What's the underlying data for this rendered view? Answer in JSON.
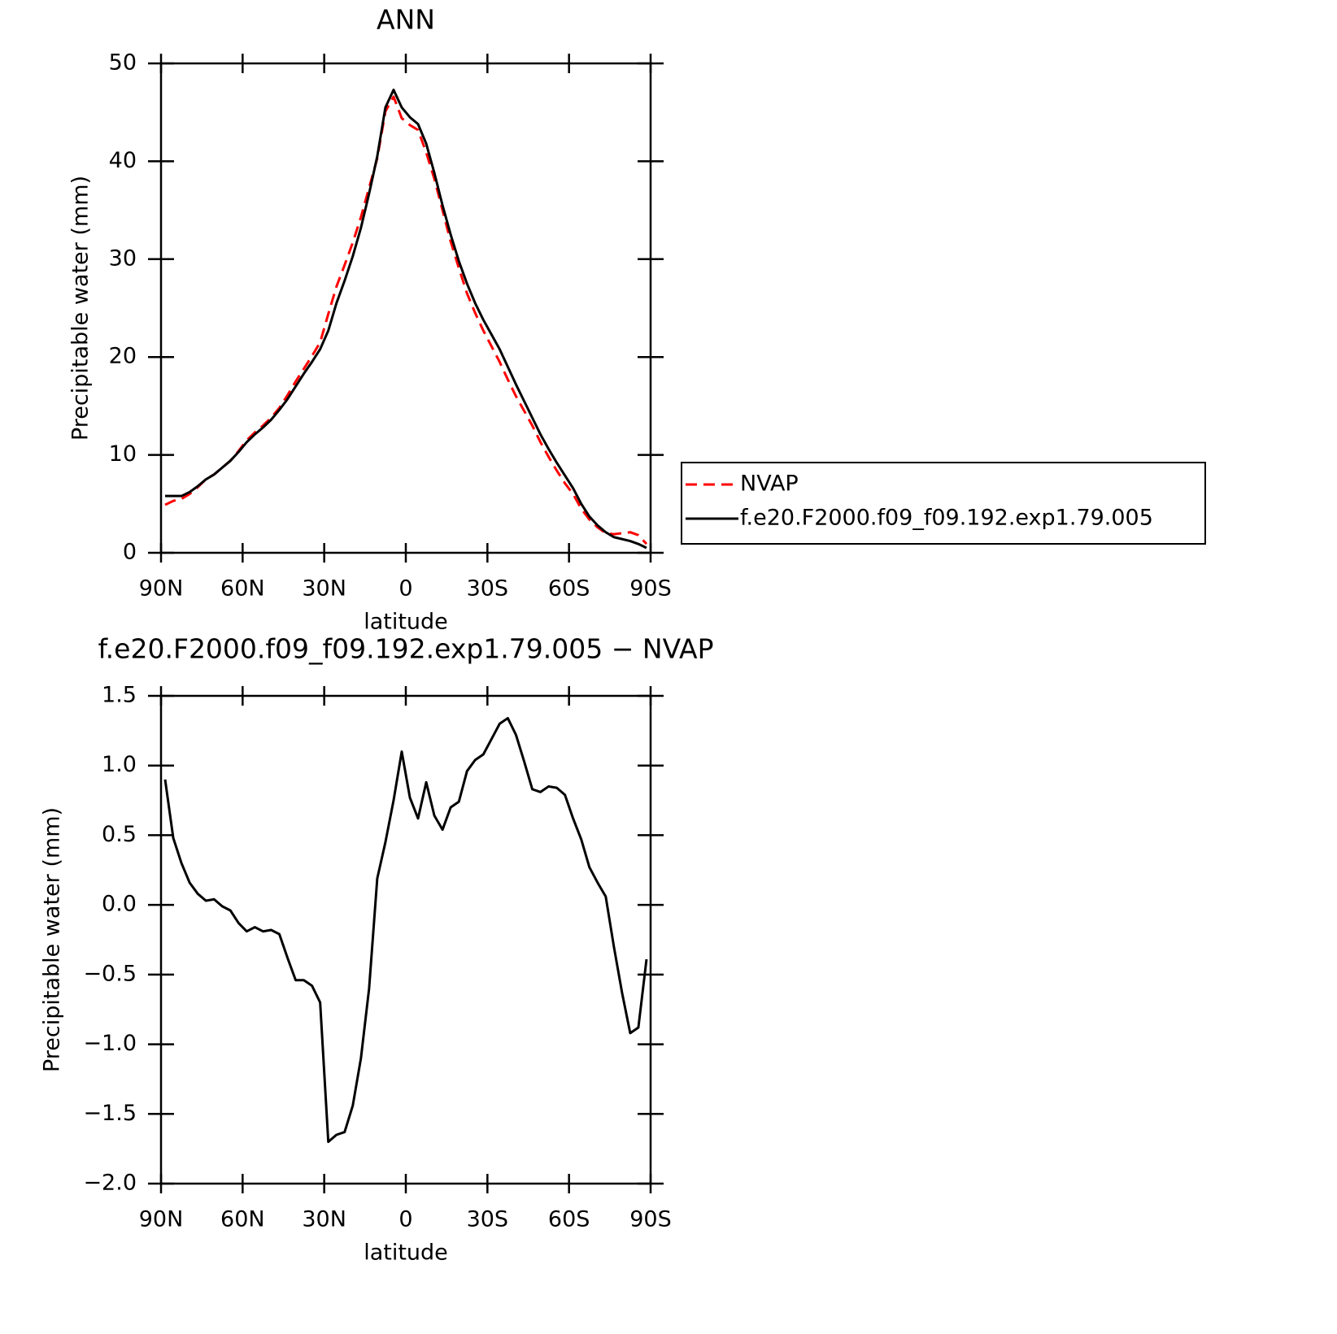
{
  "chart_data": [
    {
      "type": "line",
      "title": "ANN",
      "x_label": "latitude",
      "y_label": "Precipitable water (mm)",
      "x": [
        88.5,
        85.5,
        82.5,
        79.5,
        76.5,
        73.5,
        70.5,
        67.5,
        64.5,
        61.5,
        58.5,
        55.5,
        52.5,
        49.5,
        46.5,
        43.5,
        40.5,
        37.5,
        34.5,
        31.5,
        28.5,
        25.5,
        22.5,
        19.5,
        16.5,
        13.5,
        10.5,
        7.5,
        4.5,
        1.5,
        -1.5,
        -4.5,
        -7.5,
        -10.5,
        -13.5,
        -16.5,
        -19.5,
        -22.5,
        -25.5,
        -28.5,
        -31.5,
        -34.5,
        -37.5,
        -40.5,
        -43.5,
        -46.5,
        -49.5,
        -52.5,
        -55.5,
        -58.5,
        -61.5,
        -64.5,
        -67.5,
        -70.5,
        -73.5,
        -76.5,
        -79.5,
        -82.5,
        -85.5,
        -88.5
      ],
      "xlim": [
        90,
        -90
      ],
      "xticks": [
        {
          "value": 90,
          "label": "90N"
        },
        {
          "value": 60,
          "label": "60N"
        },
        {
          "value": 30,
          "label": "30N"
        },
        0,
        {
          "value": -30,
          "label": "30S"
        },
        {
          "value": -60,
          "label": "60S"
        },
        {
          "value": -90,
          "label": "90S"
        }
      ],
      "ylim": [
        0,
        50
      ],
      "yticks": [
        0,
        10,
        20,
        30,
        40,
        50
      ],
      "legend": "right",
      "series": [
        {
          "name": "NVAP",
          "color": "#ff0000",
          "style": "dashed",
          "values": [
            4.9,
            5.3,
            5.5,
            6.0,
            6.7,
            7.5,
            8.0,
            8.7,
            9.4,
            10.4,
            11.5,
            12.3,
            13.0,
            13.8,
            14.8,
            16.1,
            17.5,
            18.8,
            20.1,
            21.5,
            24.4,
            27.2,
            29.4,
            31.7,
            34.3,
            37.3,
            40.3,
            45.1,
            46.6,
            44.4,
            43.7,
            43.2,
            40.9,
            38.2,
            35.0,
            31.8,
            29.1,
            26.5,
            24.5,
            22.7,
            21.1,
            19.5,
            17.7,
            16.0,
            14.5,
            13.0,
            11.3,
            9.8,
            8.4,
            7.1,
            6.0,
            4.5,
            3.4,
            2.6,
            2.0,
            1.9,
            2.0,
            2.1,
            1.8,
            0.9
          ]
        },
        {
          "name": "f.e20.F2000.f09_f09.192.exp1.79.005",
          "color": "#000000",
          "style": "solid",
          "values": [
            5.8,
            5.8,
            5.8,
            6.2,
            6.8,
            7.5,
            8.0,
            8.7,
            9.4,
            10.3,
            11.3,
            12.1,
            12.8,
            13.6,
            14.6,
            15.7,
            17.0,
            18.3,
            19.5,
            20.8,
            22.7,
            25.5,
            27.8,
            30.3,
            33.2,
            36.7,
            40.5,
            45.5,
            47.3,
            45.5,
            44.5,
            43.8,
            41.8,
            38.8,
            35.5,
            32.5,
            29.8,
            27.5,
            25.5,
            23.8,
            22.3,
            20.8,
            19.0,
            17.2,
            15.5,
            13.8,
            12.1,
            10.6,
            9.2,
            7.9,
            6.6,
            5.0,
            3.7,
            2.8,
            2.1,
            1.6,
            1.4,
            1.2,
            0.9,
            0.5
          ]
        }
      ]
    },
    {
      "type": "line",
      "title": "f.e20.F2000.f09_f09.192.exp1.79.005 − NVAP",
      "x_label": "latitude",
      "y_label": "Precipitable water (mm)",
      "x": [
        88.5,
        85.5,
        82.5,
        79.5,
        76.5,
        73.5,
        70.5,
        67.5,
        64.5,
        61.5,
        58.5,
        55.5,
        52.5,
        49.5,
        46.5,
        43.5,
        40.5,
        37.5,
        34.5,
        31.5,
        28.5,
        25.5,
        22.5,
        19.5,
        16.5,
        13.5,
        10.5,
        7.5,
        4.5,
        1.5,
        -1.5,
        -4.5,
        -7.5,
        -10.5,
        -13.5,
        -16.5,
        -19.5,
        -22.5,
        -25.5,
        -28.5,
        -31.5,
        -34.5,
        -37.5,
        -40.5,
        -43.5,
        -46.5,
        -49.5,
        -52.5,
        -55.5,
        -58.5,
        -61.5,
        -64.5,
        -67.5,
        -70.5,
        -73.5,
        -76.5,
        -79.5,
        -82.5,
        -85.5,
        -88.5
      ],
      "xlim": [
        90,
        -90
      ],
      "xticks": [
        {
          "value": 90,
          "label": "90N"
        },
        {
          "value": 60,
          "label": "60N"
        },
        {
          "value": 30,
          "label": "30N"
        },
        0,
        {
          "value": -30,
          "label": "30S"
        },
        {
          "value": -60,
          "label": "60S"
        },
        {
          "value": -90,
          "label": "90S"
        }
      ],
      "ylim": [
        -2.0,
        1.5
      ],
      "yticks": [
        {
          "value": -2.0,
          "label": "−2.0"
        },
        {
          "value": -1.5,
          "label": "−1.5"
        },
        {
          "value": -1.0,
          "label": "−1.0"
        },
        {
          "value": -0.5,
          "label": "−0.5"
        },
        {
          "value": 0.0,
          "label": "0.0"
        },
        0.5,
        {
          "value": 1.0,
          "label": "1.0"
        },
        1.5
      ],
      "series": [
        {
          "color": "#000000",
          "style": "solid",
          "values": [
            0.9,
            0.48,
            0.3,
            0.16,
            0.08,
            0.03,
            0.04,
            -0.01,
            -0.04,
            -0.13,
            -0.19,
            -0.16,
            -0.19,
            -0.18,
            -0.21,
            -0.38,
            -0.54,
            -0.54,
            -0.58,
            -0.7,
            -1.7,
            -1.65,
            -1.63,
            -1.44,
            -1.1,
            -0.6,
            0.19,
            0.45,
            0.75,
            1.1,
            0.77,
            0.62,
            0.88,
            0.64,
            0.54,
            0.7,
            0.74,
            0.96,
            1.04,
            1.08,
            1.19,
            1.3,
            1.34,
            1.22,
            1.03,
            0.83,
            0.81,
            0.85,
            0.84,
            0.79,
            0.62,
            0.47,
            0.27,
            0.16,
            0.06,
            -0.3,
            -0.63,
            -0.92,
            -0.88,
            -0.39
          ]
        }
      ]
    }
  ]
}
